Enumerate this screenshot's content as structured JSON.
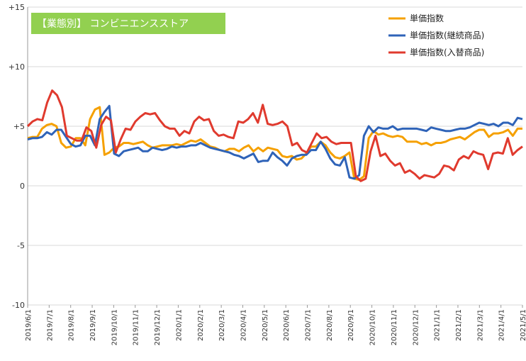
{
  "chart_data": {
    "type": "line",
    "title": "【業態別】 コンビニエンスストア",
    "title_color": "#92D050",
    "ylim": [
      -10,
      15
    ],
    "y_ticks": [
      "+15",
      "+10",
      "+5",
      "0",
      "-5",
      "-10"
    ],
    "y_tick_values": [
      15,
      10,
      5,
      0,
      -5,
      -10
    ],
    "grid": true,
    "legend_position": "top-right",
    "x_labels": [
      "2019/6/1",
      "2019/7/1",
      "2019/8/1",
      "2019/9/1",
      "2019/10/1",
      "2019/11/1",
      "2019/12/1",
      "2020/1/1",
      "2020/2/1",
      "2020/3/1",
      "2020/4/1",
      "2020/5/1",
      "2020/6/1",
      "2020/7/1",
      "2020/8/1",
      "2020/9/1",
      "2020/10/1",
      "2020/11/1",
      "2020/12/1",
      "2021/1/1",
      "2021/2/1",
      "2021/3/1",
      "2021/4/1",
      "2021/5/1"
    ],
    "series": [
      {
        "name": "単価指数",
        "color": "#F5A000",
        "values": [
          4.0,
          4.1,
          4.1,
          4.8,
          5.1,
          5.2,
          5.0,
          3.6,
          3.2,
          3.3,
          4.0,
          4.0,
          3.4,
          5.6,
          6.4,
          6.6,
          2.6,
          2.8,
          3.2,
          3.3,
          3.6,
          3.6,
          3.5,
          3.6,
          3.7,
          3.4,
          3.2,
          3.3,
          3.4,
          3.4,
          3.4,
          3.5,
          3.4,
          3.6,
          3.8,
          3.7,
          3.9,
          3.6,
          3.3,
          3.2,
          3.0,
          2.9,
          3.1,
          3.1,
          2.9,
          3.2,
          3.4,
          2.9,
          3.2,
          2.9,
          3.2,
          3.1,
          3.0,
          2.5,
          2.4,
          2.5,
          2.2,
          2.3,
          2.7,
          3.3,
          3.3,
          3.7,
          3.4,
          2.8,
          2.4,
          2.3,
          2.5,
          2.8,
          0.6,
          0.5,
          0.8,
          4.0,
          4.6,
          4.3,
          4.4,
          4.2,
          4.1,
          4.2,
          4.1,
          3.7,
          3.7,
          3.7,
          3.5,
          3.6,
          3.4,
          3.6,
          3.6,
          3.7,
          3.9,
          4.0,
          4.1,
          3.9,
          4.2,
          4.5,
          4.7,
          4.7,
          4.1,
          4.4,
          4.4,
          4.5,
          4.7,
          4.2,
          4.8,
          4.8
        ]
      },
      {
        "name": "単価指数(継続商品)",
        "color": "#2F63B8",
        "values": [
          3.9,
          4.0,
          4.0,
          4.1,
          4.5,
          4.3,
          4.7,
          4.7,
          4.1,
          3.5,
          3.3,
          3.4,
          4.2,
          4.2,
          3.4,
          5.6,
          6.2,
          6.7,
          2.7,
          2.5,
          2.9,
          3.0,
          3.1,
          3.2,
          2.9,
          2.9,
          3.2,
          3.1,
          3.0,
          3.1,
          3.3,
          3.2,
          3.3,
          3.3,
          3.4,
          3.4,
          3.6,
          3.4,
          3.2,
          3.1,
          3.0,
          2.9,
          2.8,
          2.6,
          2.5,
          2.3,
          2.5,
          2.7,
          2.0,
          2.1,
          2.1,
          2.8,
          2.4,
          2.1,
          1.7,
          2.3,
          2.5,
          2.6,
          2.6,
          3.0,
          3.0,
          3.7,
          3.1,
          2.3,
          1.8,
          1.7,
          2.4,
          0.7,
          0.6,
          0.9,
          4.2,
          5.0,
          4.5,
          4.9,
          4.8,
          4.8,
          5.0,
          4.7,
          4.8,
          4.8,
          4.8,
          4.8,
          4.7,
          4.6,
          4.9,
          4.8,
          4.7,
          4.6,
          4.6,
          4.7,
          4.8,
          4.8,
          4.9,
          5.1,
          5.3,
          5.2,
          5.1,
          5.2,
          5.0,
          5.3,
          5.3,
          5.1,
          5.7,
          5.6
        ]
      },
      {
        "name": "単価指数(入替商品)",
        "color": "#E03A2E",
        "values": [
          5.0,
          5.4,
          5.6,
          5.5,
          7.0,
          8.0,
          7.6,
          6.6,
          4.2,
          4.0,
          3.8,
          3.8,
          4.9,
          4.6,
          3.2,
          5.1,
          5.8,
          5.5,
          2.8,
          3.9,
          4.8,
          4.7,
          5.4,
          5.8,
          6.1,
          6.0,
          6.1,
          5.5,
          5.0,
          4.8,
          4.8,
          4.2,
          4.6,
          4.4,
          5.4,
          5.8,
          5.5,
          5.6,
          4.6,
          4.2,
          4.3,
          4.1,
          4.0,
          5.4,
          5.3,
          5.6,
          6.1,
          5.3,
          6.8,
          5.2,
          5.1,
          5.2,
          5.4,
          5.0,
          3.4,
          3.6,
          3.0,
          2.8,
          3.6,
          4.4,
          4.0,
          4.1,
          3.7,
          3.5,
          3.6,
          3.6,
          3.6,
          0.8,
          0.4,
          0.6,
          2.9,
          4.2,
          2.5,
          2.7,
          2.1,
          1.7,
          1.9,
          1.1,
          1.3,
          1.0,
          0.6,
          0.9,
          0.8,
          0.7,
          1.0,
          1.7,
          1.6,
          1.3,
          2.2,
          2.5,
          2.3,
          2.9,
          2.7,
          2.6,
          1.4,
          2.7,
          2.8,
          2.7,
          4.0,
          2.6,
          3.0,
          3.3
        ]
      }
    ]
  }
}
